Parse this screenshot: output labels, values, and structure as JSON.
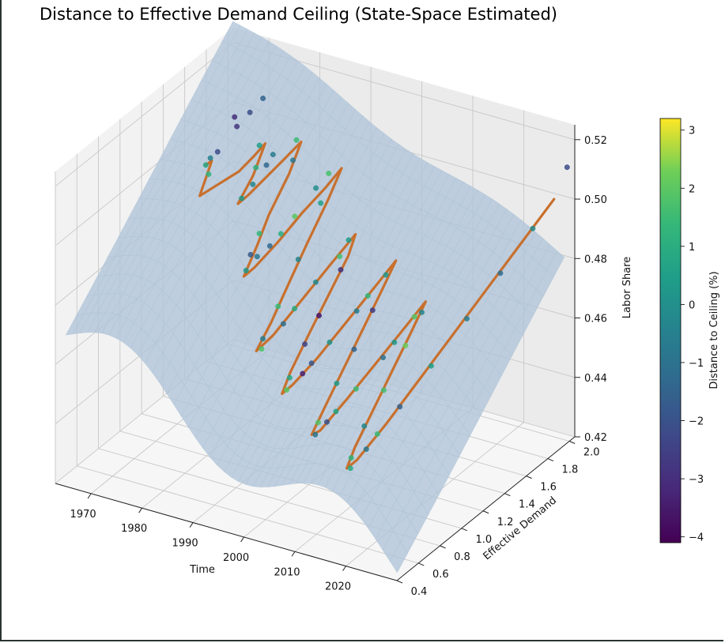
{
  "chart_data": {
    "type": "scatter",
    "title": "Distance to Effective Demand Ceiling (State-Space Estimated)",
    "xlabel": "Time",
    "ylabel": "Effective Demand",
    "zlabel": "Labor Share",
    "xlim": [
      1963,
      2030
    ],
    "ylim": [
      0.4,
      2.05
    ],
    "zlim": [
      0.42,
      0.525
    ],
    "x_ticks": [
      "1970",
      "1980",
      "1990",
      "2000",
      "2010",
      "2020"
    ],
    "y_ticks": [
      "0.4",
      "0.6",
      "0.8",
      "1.0",
      "1.2",
      "1.4",
      "1.6",
      "1.8",
      "2.0"
    ],
    "z_ticks": [
      "0.42",
      "0.44",
      "0.46",
      "0.48",
      "0.50",
      "0.52"
    ],
    "colorbar": {
      "label": "Distance to Ceiling (%)",
      "range": [
        -4.1,
        3.2
      ],
      "ticks": [
        "−4",
        "−3",
        "−2",
        "−1",
        "0",
        "1",
        "2",
        "3"
      ]
    },
    "series": [
      {
        "name": "Estimated ceiling surface",
        "kind": "surface",
        "color": "#b0c4d8"
      },
      {
        "name": "Labor share path",
        "kind": "line",
        "color": "#c8702e"
      },
      {
        "name": "Observations",
        "kind": "scatter",
        "cmap": "viridis"
      }
    ],
    "trajectory": [
      [
        1965.0,
        1.7,
        0.49
      ],
      [
        1966.2,
        1.7,
        0.492
      ],
      [
        1967.0,
        1.55,
        0.485
      ],
      [
        1968.5,
        1.6,
        0.487
      ],
      [
        1970.0,
        1.65,
        0.489
      ],
      [
        1971.5,
        1.7,
        0.491
      ],
      [
        1972.5,
        1.8,
        0.494
      ],
      [
        1973.5,
        1.85,
        0.497
      ],
      [
        1974.3,
        1.7,
        0.491
      ],
      [
        1974.5,
        1.55,
        0.486
      ],
      [
        1975.5,
        1.6,
        0.488
      ],
      [
        1977.0,
        1.7,
        0.492
      ],
      [
        1978.5,
        1.8,
        0.496
      ],
      [
        1979.5,
        1.9,
        0.499
      ],
      [
        1980.3,
        1.75,
        0.493
      ],
      [
        1980.5,
        1.55,
        0.485
      ],
      [
        1981.5,
        1.4,
        0.48
      ],
      [
        1982.0,
        1.25,
        0.474
      ],
      [
        1983.0,
        1.3,
        0.476
      ],
      [
        1984.5,
        1.45,
        0.481
      ],
      [
        1986.0,
        1.6,
        0.487
      ],
      [
        1987.5,
        1.75,
        0.492
      ],
      [
        1988.5,
        1.85,
        0.496
      ],
      [
        1989.0,
        1.7,
        0.49
      ],
      [
        1989.3,
        1.5,
        0.482
      ],
      [
        1990.0,
        1.3,
        0.475
      ],
      [
        1990.5,
        1.1,
        0.467
      ],
      [
        1990.8,
        0.95,
        0.462
      ],
      [
        1992.0,
        1.05,
        0.465
      ],
      [
        1993.5,
        1.25,
        0.472
      ],
      [
        1995.0,
        1.45,
        0.479
      ],
      [
        1996.5,
        1.6,
        0.485
      ],
      [
        1997.2,
        1.5,
        0.481
      ],
      [
        1997.6,
        1.3,
        0.474
      ],
      [
        1998.0,
        1.1,
        0.467
      ],
      [
        1998.5,
        0.9,
        0.46
      ],
      [
        1999.0,
        0.8,
        0.456
      ],
      [
        2000.0,
        0.85,
        0.458
      ],
      [
        2001.5,
        1.0,
        0.463
      ],
      [
        2003.0,
        1.2,
        0.47
      ],
      [
        2004.5,
        1.4,
        0.477
      ],
      [
        2005.5,
        1.55,
        0.482
      ],
      [
        2006.0,
        1.4,
        0.477
      ],
      [
        2006.5,
        1.2,
        0.47
      ],
      [
        2007.0,
        1.0,
        0.463
      ],
      [
        2007.5,
        0.8,
        0.456
      ],
      [
        2008.0,
        0.65,
        0.451
      ],
      [
        2009.0,
        0.68,
        0.452
      ],
      [
        2010.5,
        0.85,
        0.458
      ],
      [
        2012.0,
        1.05,
        0.465
      ],
      [
        2013.5,
        1.25,
        0.472
      ],
      [
        2014.5,
        1.4,
        0.477
      ],
      [
        2015.0,
        1.25,
        0.472
      ],
      [
        2015.5,
        1.05,
        0.465
      ],
      [
        2016.0,
        0.85,
        0.458
      ],
      [
        2016.5,
        0.65,
        0.451
      ],
      [
        2017.0,
        0.55,
        0.447
      ],
      [
        2018.0,
        0.6,
        0.449
      ],
      [
        2019.5,
        0.8,
        0.456
      ],
      [
        2021.0,
        1.05,
        0.465
      ],
      [
        2022.5,
        1.3,
        0.474
      ],
      [
        2024.0,
        1.55,
        0.483
      ],
      [
        2025.5,
        1.8,
        0.492
      ],
      [
        2027.0,
        2.0,
        0.5
      ]
    ],
    "observations": [
      [
        1965.0,
        1.7,
        0.49,
        0.8
      ],
      [
        1965.5,
        1.72,
        0.492,
        -0.5
      ],
      [
        1966.0,
        1.68,
        0.488,
        1.2
      ],
      [
        1966.5,
        1.74,
        0.494,
        -2.2
      ],
      [
        1967.5,
        1.85,
        0.503,
        -3.0
      ],
      [
        1969.0,
        1.8,
        0.502,
        -2.8
      ],
      [
        1970.5,
        1.85,
        0.506,
        -2.1
      ],
      [
        1972.0,
        1.9,
        0.51,
        -1.5
      ],
      [
        1973.0,
        1.82,
        0.497,
        0.5
      ],
      [
        1973.8,
        1.75,
        0.492,
        1.1
      ],
      [
        1974.6,
        1.58,
        0.487,
        0.3
      ],
      [
        1975.3,
        1.65,
        0.49,
        -0.3
      ],
      [
        1976.5,
        1.72,
        0.495,
        -1.4
      ],
      [
        1978.2,
        1.7,
        0.5,
        -0.7
      ],
      [
        1979.0,
        1.88,
        0.5,
        1.5
      ],
      [
        1980.0,
        1.8,
        0.496,
        -0.8
      ],
      [
        1980.8,
        1.45,
        0.482,
        1.3
      ],
      [
        1981.2,
        1.35,
        0.478,
        -1.8
      ],
      [
        1981.8,
        1.28,
        0.475,
        0.2
      ],
      [
        1982.5,
        1.35,
        0.478,
        -0.9
      ],
      [
        1983.5,
        1.42,
        0.48,
        -1.3
      ],
      [
        1984.0,
        1.5,
        0.482,
        1.0
      ],
      [
        1985.0,
        1.58,
        0.486,
        2.0
      ],
      [
        1986.2,
        1.72,
        0.492,
        -0.1
      ],
      [
        1987.0,
        1.8,
        0.495,
        1.7
      ],
      [
        1988.0,
        1.68,
        0.489,
        0.6
      ],
      [
        1989.5,
        1.4,
        0.479,
        -0.4
      ],
      [
        1990.2,
        1.18,
        0.47,
        1.4
      ],
      [
        1990.6,
        1.02,
        0.464,
        -0.6
      ],
      [
        1991.2,
        0.98,
        0.462,
        1.8
      ],
      [
        1992.5,
        1.12,
        0.467,
        -1.2
      ],
      [
        1993.0,
        1.2,
        0.47,
        0.9
      ],
      [
        1994.0,
        1.35,
        0.475,
        -0.2
      ],
      [
        1995.5,
        1.5,
        0.48,
        1.6
      ],
      [
        1996.0,
        1.56,
        0.484,
        0.4
      ],
      [
        1997.0,
        1.44,
        0.478,
        -2.9
      ],
      [
        1997.8,
        1.2,
        0.47,
        -3.6
      ],
      [
        1998.2,
        1.05,
        0.465,
        -2.4
      ],
      [
        1998.8,
        0.88,
        0.459,
        0.7
      ],
      [
        1999.5,
        0.82,
        0.457,
        1.9
      ],
      [
        2000.5,
        0.92,
        0.46,
        -3.3
      ],
      [
        2001.0,
        0.98,
        0.462,
        -1.9
      ],
      [
        2002.0,
        1.1,
        0.466,
        0.1
      ],
      [
        2003.5,
        1.28,
        0.472,
        -0.7
      ],
      [
        2004.0,
        1.36,
        0.475,
        1.3
      ],
      [
        2005.0,
        1.48,
        0.479,
        0.2
      ],
      [
        2006.2,
        1.3,
        0.473,
        -2.6
      ],
      [
        2006.8,
        1.1,
        0.466,
        -1.5
      ],
      [
        2007.2,
        0.92,
        0.46,
        0.3
      ],
      [
        2007.8,
        0.72,
        0.453,
        1.8
      ],
      [
        2008.5,
        0.66,
        0.451,
        -0.9
      ],
      [
        2009.5,
        0.72,
        0.454,
        -2.0
      ],
      [
        2010.0,
        0.78,
        0.456,
        0.6
      ],
      [
        2011.0,
        0.92,
        0.46,
        1.5
      ],
      [
        2012.5,
        1.1,
        0.466,
        -1.0
      ],
      [
        2013.0,
        1.18,
        0.469,
        0.2
      ],
      [
        2014.0,
        1.32,
        0.474,
        1.9
      ],
      [
        2014.8,
        1.35,
        0.475,
        -0.4
      ],
      [
        2015.2,
        1.18,
        0.469,
        2.2
      ],
      [
        2015.8,
        0.95,
        0.461,
        1.6
      ],
      [
        2016.2,
        0.75,
        0.455,
        -0.3
      ],
      [
        2016.8,
        0.6,
        0.449,
        1.2
      ],
      [
        2017.5,
        0.56,
        0.447,
        0.9
      ],
      [
        2018.5,
        0.66,
        0.451,
        -0.8
      ],
      [
        2019.0,
        0.74,
        0.454,
        1.4
      ],
      [
        2020.0,
        0.9,
        0.459,
        -1.6
      ],
      [
        2021.5,
        1.12,
        0.467,
        0.5
      ],
      [
        2023.0,
        1.38,
        0.476,
        -0.6
      ],
      [
        2024.5,
        1.62,
        0.485,
        -1.2
      ],
      [
        2026.0,
        1.85,
        0.494,
        -0.2
      ],
      [
        2028.5,
        2.05,
        0.51,
        -2.2
      ]
    ]
  }
}
